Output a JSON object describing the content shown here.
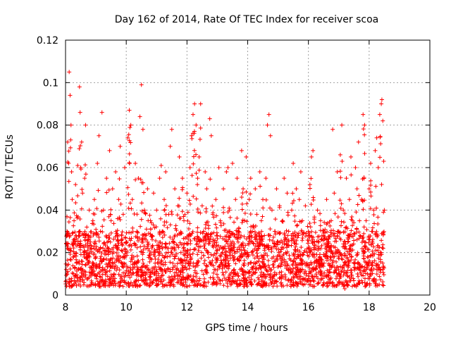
{
  "chart_data": {
    "type": "scatter",
    "title": "Day 162 of 2014, Rate Of TEC Index for receiver scoa",
    "xlabel": "GPS time / hours",
    "ylabel": "ROTI / TECUs",
    "xlim": [
      8,
      20
    ],
    "ylim": [
      0,
      0.12
    ],
    "grid": true,
    "marker": "+",
    "color": "#ff0000",
    "x_ticks": [
      "8",
      "10",
      "12",
      "14",
      "16",
      "18",
      "20"
    ],
    "y_ticks": [
      "0",
      "0.02",
      "0.04",
      "0.06",
      "0.08",
      "0.1",
      "0.12"
    ],
    "x_tick_values": [
      8,
      10,
      12,
      14,
      16,
      18,
      20
    ],
    "y_tick_values": [
      0,
      0.02,
      0.04,
      0.06,
      0.08,
      0.1,
      0.12
    ],
    "data_range": {
      "x_start": 8.0,
      "x_end": 18.5
    },
    "series": [
      {
        "name": "ROTI",
        "points": [
          [
            8.02,
            0.012
          ],
          [
            8.05,
            0.03
          ],
          [
            8.07,
            0.072
          ],
          [
            8.1,
            0.062
          ],
          [
            8.12,
            0.105
          ],
          [
            8.15,
            0.094
          ],
          [
            8.18,
            0.08
          ],
          [
            8.2,
            0.058
          ],
          [
            8.22,
            0.045
          ],
          [
            8.25,
            0.018
          ],
          [
            8.28,
            0.035
          ],
          [
            8.3,
            0.025
          ],
          [
            8.33,
            0.052
          ],
          [
            8.36,
            0.015
          ],
          [
            8.4,
            0.061
          ],
          [
            8.43,
            0.028
          ],
          [
            8.46,
            0.098
          ],
          [
            8.48,
            0.086
          ],
          [
            8.5,
            0.06
          ],
          [
            8.53,
            0.072
          ],
          [
            8.56,
            0.048
          ],
          [
            8.6,
            0.02
          ],
          [
            8.63,
            0.055
          ],
          [
            8.66,
            0.08
          ],
          [
            8.7,
            0.032
          ],
          [
            8.74,
            0.015
          ],
          [
            8.78,
            0.04
          ],
          [
            8.82,
            0.025
          ],
          [
            8.86,
            0.012
          ],
          [
            8.9,
            0.035
          ],
          [
            8.95,
            0.045
          ],
          [
            9.0,
            0.018
          ],
          [
            9.05,
            0.062
          ],
          [
            9.1,
            0.075
          ],
          [
            9.15,
            0.03
          ],
          [
            9.2,
            0.086
          ],
          [
            9.25,
            0.04
          ],
          [
            9.3,
            0.012
          ],
          [
            9.35,
            0.055
          ],
          [
            9.4,
            0.022
          ],
          [
            9.45,
            0.068
          ],
          [
            9.5,
            0.035
          ],
          [
            9.55,
            0.05
          ],
          [
            9.6,
            0.01
          ],
          [
            9.65,
            0.058
          ],
          [
            9.7,
            0.028
          ],
          [
            9.75,
            0.045
          ],
          [
            9.8,
            0.07
          ],
          [
            9.85,
            0.015
          ],
          [
            9.9,
            0.038
          ],
          [
            9.95,
            0.06
          ],
          [
            10.0,
            0.025
          ],
          [
            10.05,
            0.074
          ],
          [
            10.1,
            0.087
          ],
          [
            10.15,
            0.08
          ],
          [
            10.2,
            0.045
          ],
          [
            10.25,
            0.018
          ],
          [
            10.3,
            0.062
          ],
          [
            10.35,
            0.03
          ],
          [
            10.4,
            0.055
          ],
          [
            10.45,
            0.084
          ],
          [
            10.5,
            0.099
          ],
          [
            10.55,
            0.078
          ],
          [
            10.6,
            0.04
          ],
          [
            10.65,
            0.022
          ],
          [
            10.7,
            0.05
          ],
          [
            10.75,
            0.012
          ],
          [
            10.8,
            0.035
          ],
          [
            10.85,
            0.028
          ],
          [
            10.9,
            0.048
          ],
          [
            10.95,
            0.015
          ],
          [
            11.0,
            0.04
          ],
          [
            11.05,
            0.02
          ],
          [
            11.1,
            0.055
          ],
          [
            11.15,
            0.061
          ],
          [
            11.2,
            0.03
          ],
          [
            11.25,
            0.045
          ],
          [
            11.3,
            0.058
          ],
          [
            11.35,
            0.018
          ],
          [
            11.4,
            0.038
          ],
          [
            11.45,
            0.07
          ],
          [
            11.5,
            0.078
          ],
          [
            11.55,
            0.025
          ],
          [
            11.6,
            0.05
          ],
          [
            11.65,
            0.012
          ],
          [
            11.7,
            0.042
          ],
          [
            11.75,
            0.065
          ],
          [
            11.8,
            0.02
          ],
          [
            11.85,
            0.055
          ],
          [
            11.9,
            0.035
          ],
          [
            11.95,
            0.015
          ],
          [
            12.0,
            0.048
          ],
          [
            12.05,
            0.028
          ],
          [
            12.1,
            0.06
          ],
          [
            12.15,
            0.075
          ],
          [
            12.2,
            0.085
          ],
          [
            12.25,
            0.09
          ],
          [
            12.3,
            0.08
          ],
          [
            12.35,
            0.055
          ],
          [
            12.4,
            0.065
          ],
          [
            12.45,
            0.09
          ],
          [
            12.5,
            0.042
          ],
          [
            12.55,
            0.03
          ],
          [
            12.6,
            0.058
          ],
          [
            12.65,
            0.05
          ],
          [
            12.7,
            0.02
          ],
          [
            12.75,
            0.083
          ],
          [
            12.8,
            0.075
          ],
          [
            12.85,
            0.038
          ],
          [
            12.9,
            0.012
          ],
          [
            12.95,
            0.045
          ],
          [
            13.0,
            0.028
          ],
          [
            13.05,
            0.06
          ],
          [
            13.1,
            0.035
          ],
          [
            13.15,
            0.015
          ],
          [
            13.2,
            0.05
          ],
          [
            13.25,
            0.022
          ],
          [
            13.3,
            0.058
          ],
          [
            13.35,
            0.06
          ],
          [
            13.4,
            0.04
          ],
          [
            13.45,
            0.025
          ],
          [
            13.5,
            0.062
          ],
          [
            13.55,
            0.018
          ],
          [
            13.6,
            0.045
          ],
          [
            13.65,
            0.055
          ],
          [
            13.7,
            0.03
          ],
          [
            13.75,
            0.012
          ],
          [
            13.8,
            0.068
          ],
          [
            13.85,
            0.05
          ],
          [
            13.9,
            0.035
          ],
          [
            13.95,
            0.065
          ],
          [
            14.0,
            0.02
          ],
          [
            14.05,
            0.045
          ],
          [
            14.1,
            0.055
          ],
          [
            14.15,
            0.03
          ],
          [
            14.2,
            0.015
          ],
          [
            14.25,
            0.05
          ],
          [
            14.3,
            0.038
          ],
          [
            14.35,
            0.022
          ],
          [
            14.4,
            0.058
          ],
          [
            14.45,
            0.035
          ],
          [
            14.5,
            0.045
          ],
          [
            14.55,
            0.028
          ],
          [
            14.6,
            0.055
          ],
          [
            14.65,
            0.08
          ],
          [
            14.7,
            0.085
          ],
          [
            14.75,
            0.075
          ],
          [
            14.8,
            0.04
          ],
          [
            14.85,
            0.018
          ],
          [
            14.9,
            0.03
          ],
          [
            14.95,
            0.05
          ],
          [
            15.0,
            0.025
          ],
          [
            15.05,
            0.042
          ],
          [
            15.1,
            0.015
          ],
          [
            15.15,
            0.035
          ],
          [
            15.2,
            0.055
          ],
          [
            15.25,
            0.02
          ],
          [
            15.3,
            0.048
          ],
          [
            15.35,
            0.03
          ],
          [
            15.4,
            0.012
          ],
          [
            15.45,
            0.04
          ],
          [
            15.5,
            0.062
          ],
          [
            15.55,
            0.025
          ],
          [
            15.6,
            0.05
          ],
          [
            15.65,
            0.018
          ],
          [
            15.7,
            0.045
          ],
          [
            15.75,
            0.058
          ],
          [
            15.8,
            0.035
          ],
          [
            15.85,
            0.02
          ],
          [
            15.9,
            0.042
          ],
          [
            15.95,
            0.015
          ],
          [
            16.0,
            0.03
          ],
          [
            16.05,
            0.052
          ],
          [
            16.1,
            0.065
          ],
          [
            16.15,
            0.068
          ],
          [
            16.2,
            0.025
          ],
          [
            16.25,
            0.012
          ],
          [
            16.3,
            0.04
          ],
          [
            16.35,
            0.022
          ],
          [
            16.4,
            0.035
          ],
          [
            16.45,
            0.015
          ],
          [
            16.5,
            0.028
          ],
          [
            16.55,
            0.018
          ],
          [
            16.6,
            0.045
          ],
          [
            16.65,
            0.025
          ],
          [
            16.7,
            0.012
          ],
          [
            16.75,
            0.035
          ],
          [
            16.8,
            0.078
          ],
          [
            16.85,
            0.048
          ],
          [
            16.9,
            0.02
          ],
          [
            16.95,
            0.058
          ],
          [
            17.0,
            0.03
          ],
          [
            17.05,
            0.066
          ],
          [
            17.1,
            0.08
          ],
          [
            17.15,
            0.04
          ],
          [
            17.2,
            0.003
          ],
          [
            17.25,
            0.055
          ],
          [
            17.3,
            0.025
          ],
          [
            17.35,
            0.045
          ],
          [
            17.4,
            0.065
          ],
          [
            17.45,
            0.035
          ],
          [
            17.5,
            0.015
          ],
          [
            17.55,
            0.06
          ],
          [
            17.6,
            0.05
          ],
          [
            17.65,
            0.072
          ],
          [
            17.7,
            0.028
          ],
          [
            17.75,
            0.045
          ],
          [
            17.8,
            0.085
          ],
          [
            17.85,
            0.08
          ],
          [
            17.9,
            0.035
          ],
          [
            17.95,
            0.018
          ],
          [
            18.0,
            0.05
          ],
          [
            18.05,
            0.062
          ],
          [
            18.1,
            0.03
          ],
          [
            18.15,
            0.04
          ],
          [
            18.2,
            0.068
          ],
          [
            18.25,
            0.074
          ],
          [
            18.3,
            0.06
          ],
          [
            18.35,
            0.085
          ],
          [
            18.4,
            0.09
          ],
          [
            18.42,
            0.092
          ],
          [
            18.45,
            0.082
          ],
          [
            18.48,
            0.063
          ],
          [
            18.5,
            0.04
          ]
        ]
      }
    ]
  }
}
